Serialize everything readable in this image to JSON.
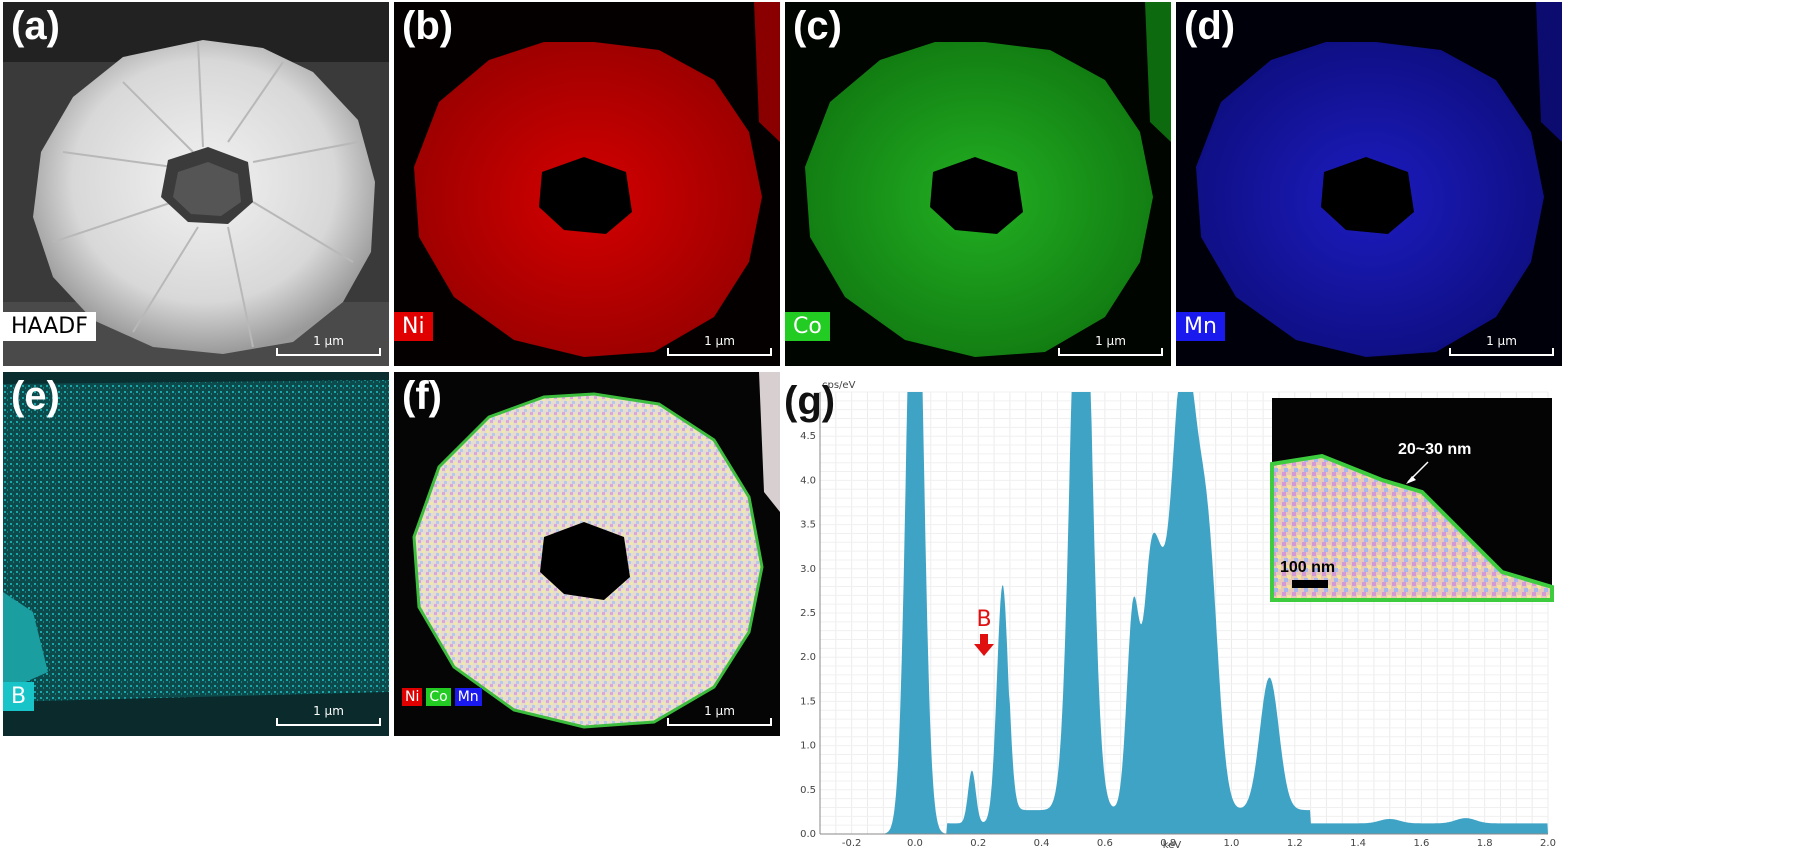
{
  "panels": {
    "a": {
      "label": "(a)",
      "channel": "HAADF",
      "scale": "1 μm"
    },
    "b": {
      "label": "(b)",
      "channel": "Ni",
      "scale": "1 μm",
      "color": "#e00000"
    },
    "c": {
      "label": "(c)",
      "channel": "Co",
      "scale": "1 μm",
      "color": "#22cc22"
    },
    "d": {
      "label": "(d)",
      "channel": "Mn",
      "scale": "1 μm",
      "color": "#1a1aee"
    },
    "e": {
      "label": "(e)",
      "channel": "B",
      "scale": "1 μm",
      "color": "#19c4c8"
    },
    "f": {
      "label": "(f)",
      "legend": [
        "Ni",
        "Co",
        "Mn"
      ],
      "scale": "1 μm"
    },
    "g": {
      "label": "(g)",
      "y_unit": "cps/eV",
      "x_unit": "keV",
      "x_ticks": [
        "-0.2",
        "0.0",
        "0.2",
        "0.4",
        "0.6",
        "0.8",
        "1.0",
        "1.2",
        "1.4",
        "1.6",
        "1.8",
        "2.0"
      ],
      "y_ticks": [
        "0.0",
        "0.5",
        "1.0",
        "1.5",
        "2.0",
        "2.5",
        "3.0",
        "3.5",
        "4.0",
        "4.5"
      ],
      "annotation": "B",
      "inset": {
        "thickness": "20~30 nm",
        "scale": "100 nm"
      },
      "fill_color": "#3fa3c6"
    }
  }
}
